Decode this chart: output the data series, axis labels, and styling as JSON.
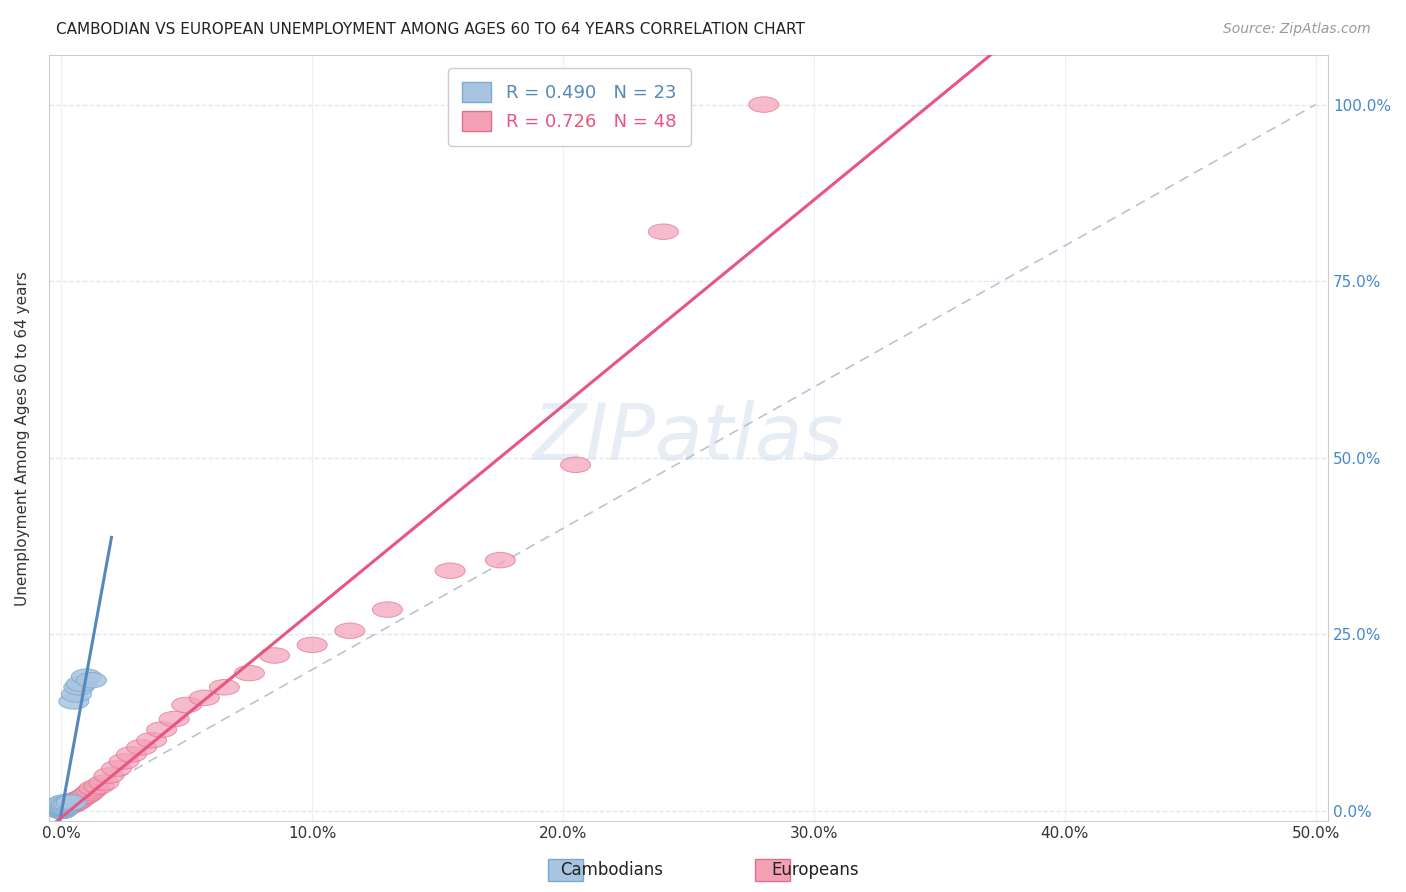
{
  "title": "CAMBODIAN VS EUROPEAN UNEMPLOYMENT AMONG AGES 60 TO 64 YEARS CORRELATION CHART",
  "source": "Source: ZipAtlas.com",
  "ylabel": "Unemployment Among Ages 60 to 64 years",
  "xlim": [
    -0.005,
    0.505
  ],
  "ylim": [
    -0.015,
    1.07
  ],
  "xticks": [
    0.0,
    0.1,
    0.2,
    0.3,
    0.4,
    0.5
  ],
  "xtick_labels": [
    "0.0%",
    "10.0%",
    "20.0%",
    "30.0%",
    "40.0%",
    "50.0%"
  ],
  "yticks": [
    0.0,
    0.25,
    0.5,
    0.75,
    1.0
  ],
  "ytick_labels_right": [
    "0.0%",
    "25.0%",
    "50.0%",
    "75.0%",
    "100.0%"
  ],
  "cambodian_R": 0.49,
  "cambodian_N": 23,
  "european_R": 0.726,
  "european_N": 48,
  "cambodian_color": "#a8c4e0",
  "european_color": "#f4a0b5",
  "cambodian_edge_color": "#7aaad0",
  "european_edge_color": "#e07090",
  "cambodian_line_color": "#5588bb",
  "european_line_color": "#e85580",
  "identity_line_color": "#b8c4d4",
  "watermark": "ZIPatlas",
  "background_color": "#ffffff",
  "grid_color": "#dde4ee",
  "title_color": "#222222",
  "source_color": "#999999",
  "ylabel_color": "#333333",
  "tick_label_color_x": "#333333",
  "tick_label_color_y": "#4488cc",
  "legend_text_camb_color": "#5588bb",
  "legend_text_euro_color": "#e85580",
  "camb_x": [
    0.0,
    0.0,
    0.0,
    0.0,
    0.0,
    0.0,
    0.0,
    0.0,
    0.0,
    0.0,
    0.001,
    0.001,
    0.001,
    0.002,
    0.002,
    0.003,
    0.004,
    0.005,
    0.006,
    0.007,
    0.008,
    0.01,
    0.012
  ],
  "camb_y": [
    0.0,
    0.0,
    0.0,
    0.002,
    0.003,
    0.004,
    0.005,
    0.005,
    0.006,
    0.01,
    0.005,
    0.008,
    0.012,
    0.007,
    0.01,
    0.01,
    0.012,
    0.155,
    0.165,
    0.175,
    0.18,
    0.19,
    0.185
  ],
  "euro_x": [
    0.0,
    0.0,
    0.0,
    0.0,
    0.0,
    0.001,
    0.001,
    0.001,
    0.002,
    0.002,
    0.002,
    0.003,
    0.003,
    0.004,
    0.004,
    0.005,
    0.005,
    0.006,
    0.007,
    0.008,
    0.009,
    0.01,
    0.011,
    0.012,
    0.013,
    0.015,
    0.017,
    0.019,
    0.022,
    0.025,
    0.028,
    0.032,
    0.036,
    0.04,
    0.045,
    0.05,
    0.057,
    0.065,
    0.075,
    0.085,
    0.1,
    0.115,
    0.13,
    0.155,
    0.175,
    0.205,
    0.24,
    0.28
  ],
  "euro_y": [
    0.0,
    0.0,
    0.002,
    0.003,
    0.005,
    0.003,
    0.005,
    0.007,
    0.005,
    0.007,
    0.01,
    0.007,
    0.01,
    0.008,
    0.012,
    0.01,
    0.015,
    0.012,
    0.015,
    0.018,
    0.02,
    0.022,
    0.025,
    0.028,
    0.032,
    0.035,
    0.04,
    0.05,
    0.06,
    0.07,
    0.08,
    0.09,
    0.1,
    0.115,
    0.13,
    0.15,
    0.16,
    0.175,
    0.195,
    0.22,
    0.235,
    0.255,
    0.285,
    0.34,
    0.355,
    0.49,
    0.82,
    1.0
  ]
}
